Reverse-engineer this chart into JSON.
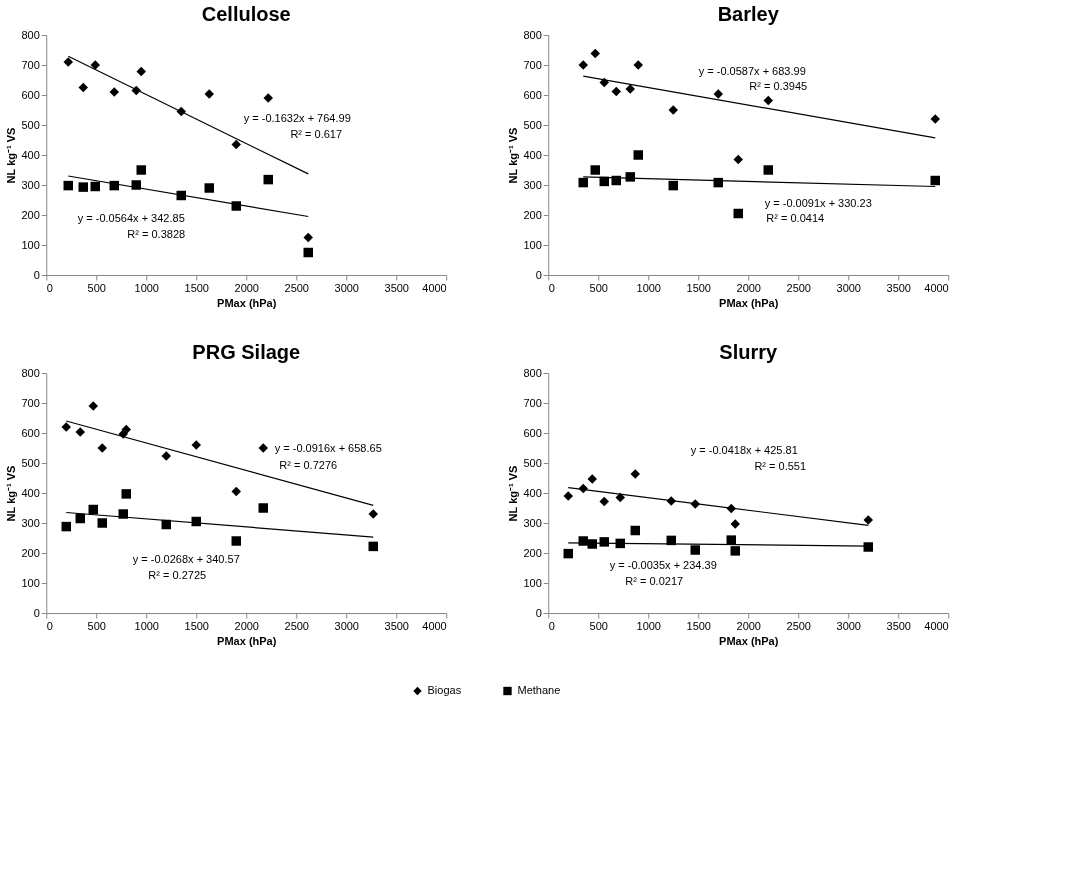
{
  "chart_data": [
    {
      "type": "scatter",
      "title": "Cellulose",
      "xlabel": "PMax (hPa)",
      "ylabel": "NL kg⁻¹ VS",
      "xlim": [
        0,
        4000
      ],
      "xticks": [
        0,
        500,
        1000,
        1500,
        2000,
        2500,
        3000,
        3500,
        4000
      ],
      "ylim": [
        0,
        800
      ],
      "yticks": [
        0,
        100,
        200,
        300,
        400,
        500,
        600,
        700,
        800
      ],
      "grid": false,
      "legend": "bottom",
      "series": [
        {
          "name": "Biogas",
          "color": "#000000",
          "marker": "diamond",
          "x": [
            220,
            370,
            490,
            680,
            900,
            950,
            1350,
            1630,
            1900,
            2220,
            2620
          ],
          "values": [
            710,
            625,
            700,
            610,
            615,
            678,
            545,
            603,
            435,
            590,
            125
          ]
        },
        {
          "name": "Methane",
          "color": "#000000",
          "marker": "square",
          "x": [
            220,
            370,
            490,
            680,
            900,
            950,
            1350,
            1630,
            1900,
            2220,
            2620
          ],
          "values": [
            298,
            293,
            295,
            298,
            300,
            350,
            265,
            290,
            230,
            318,
            75
          ]
        },
        {
          "type": "line",
          "color": "#000000",
          "marker": "none",
          "x": [
            220,
            2620
          ],
          "values": [
            729,
            337
          ]
        },
        {
          "type": "line",
          "color": "#000000",
          "marker": "none",
          "x": [
            220,
            2620
          ],
          "values": [
            330,
            195
          ]
        }
      ],
      "annotations": [
        "y = -0.1632x + 764.99",
        "R² = 0.617",
        "y = -0.0564x + 342.85",
        "R² = 0.3828"
      ]
    },
    {
      "type": "scatter",
      "title": "Barley",
      "xlabel": "PMax (hPa)",
      "ylabel": "NL kg⁻¹ VS",
      "xlim": [
        0,
        4000
      ],
      "xticks": [
        0,
        500,
        1000,
        1500,
        2000,
        2500,
        3000,
        3500,
        4000
      ],
      "ylim": [
        0,
        800
      ],
      "yticks": [
        0,
        100,
        200,
        300,
        400,
        500,
        600,
        700,
        800
      ],
      "grid": false,
      "series": [
        {
          "name": "Biogas",
          "color": "#000000",
          "marker": "diamond",
          "x": [
            350,
            470,
            560,
            680,
            820,
            900,
            1250,
            1700,
            1900,
            2200,
            3870
          ],
          "values": [
            700,
            738,
            642,
            612,
            620,
            700,
            550,
            603,
            385,
            582,
            520
          ]
        },
        {
          "name": "Methane",
          "color": "#000000",
          "marker": "square",
          "x": [
            350,
            470,
            560,
            680,
            820,
            900,
            1250,
            1700,
            1900,
            2200,
            3870
          ],
          "values": [
            308,
            350,
            312,
            315,
            327,
            400,
            298,
            308,
            205,
            350,
            315
          ]
        },
        {
          "type": "line",
          "color": "#000000",
          "marker": "none",
          "x": [
            350,
            3870
          ],
          "values": [
            663,
            457
          ]
        },
        {
          "type": "line",
          "color": "#000000",
          "marker": "none",
          "x": [
            350,
            3870
          ],
          "values": [
            327,
            295
          ]
        }
      ],
      "annotations": [
        "y = -0.0587x + 683.99",
        "R² = 0.3945",
        "y = -0.0091x + 330.23",
        "R² = 0.0414"
      ]
    },
    {
      "type": "scatter",
      "title": "PRG Silage",
      "xlabel": "PMax (hPa)",
      "ylabel": "NL kg⁻¹ VS",
      "xlim": [
        0,
        4000
      ],
      "xticks": [
        0,
        500,
        1000,
        1500,
        2000,
        2500,
        3000,
        3500,
        4000
      ],
      "ylim": [
        0,
        800
      ],
      "yticks": [
        0,
        100,
        200,
        300,
        400,
        500,
        600,
        700,
        800
      ],
      "grid": false,
      "series": [
        {
          "name": "Biogas",
          "color": "#000000",
          "marker": "diamond",
          "x": [
            200,
            340,
            470,
            560,
            770,
            800,
            1200,
            1500,
            1900,
            2170,
            3270
          ],
          "values": [
            620,
            603,
            690,
            550,
            597,
            612,
            523,
            560,
            405,
            550,
            330
          ]
        },
        {
          "name": "Methane",
          "color": "#000000",
          "marker": "square",
          "x": [
            200,
            340,
            470,
            560,
            770,
            800,
            1200,
            1500,
            1900,
            2170,
            3270
          ],
          "values": [
            288,
            315,
            345,
            300,
            330,
            397,
            295,
            305,
            240,
            350,
            222
          ]
        },
        {
          "type": "line",
          "color": "#000000",
          "marker": "none",
          "x": [
            200,
            3270
          ],
          "values": [
            640,
            359
          ]
        },
        {
          "type": "line",
          "color": "#000000",
          "marker": "none",
          "x": [
            200,
            3270
          ],
          "values": [
            335,
            253
          ]
        }
      ],
      "annotations": [
        "y = -0.0916x + 658.65",
        "R² = 0.7276",
        "y = -0.0268x + 340.57",
        "R² = 0.2725"
      ]
    },
    {
      "type": "scatter",
      "title": "Slurry",
      "xlabel": "PMax (hPa)",
      "ylabel": "NL kg⁻¹ VS",
      "xlim": [
        0,
        4000
      ],
      "xticks": [
        0,
        500,
        1000,
        1500,
        2000,
        2500,
        3000,
        3500,
        4000
      ],
      "ylim": [
        0,
        800
      ],
      "yticks": [
        0,
        100,
        200,
        300,
        400,
        500,
        600,
        700,
        800
      ],
      "grid": false,
      "series": [
        {
          "name": "Biogas",
          "color": "#000000",
          "marker": "diamond",
          "x": [
            200,
            350,
            440,
            560,
            720,
            870,
            1230,
            1470,
            1830,
            1870,
            3200
          ],
          "values": [
            390,
            415,
            447,
            372,
            385,
            463,
            373,
            363,
            348,
            297,
            310
          ]
        },
        {
          "name": "Methane",
          "color": "#000000",
          "marker": "square",
          "x": [
            200,
            350,
            440,
            560,
            720,
            870,
            1230,
            1470,
            1830,
            1870,
            3200
          ],
          "values": [
            198,
            240,
            230,
            237,
            232,
            275,
            242,
            210,
            243,
            207,
            220
          ]
        },
        {
          "type": "line",
          "color": "#000000",
          "marker": "none",
          "x": [
            200,
            3200
          ],
          "values": [
            418,
            292
          ]
        },
        {
          "type": "line",
          "color": "#000000",
          "marker": "none",
          "x": [
            200,
            3200
          ],
          "values": [
            234,
            223
          ]
        }
      ],
      "annotations": [
        "y = -0.0418x + 425.81",
        "R² = 0.551",
        "y = -0.0035x + 234.39",
        "R² = 0.0217"
      ]
    }
  ]
}
